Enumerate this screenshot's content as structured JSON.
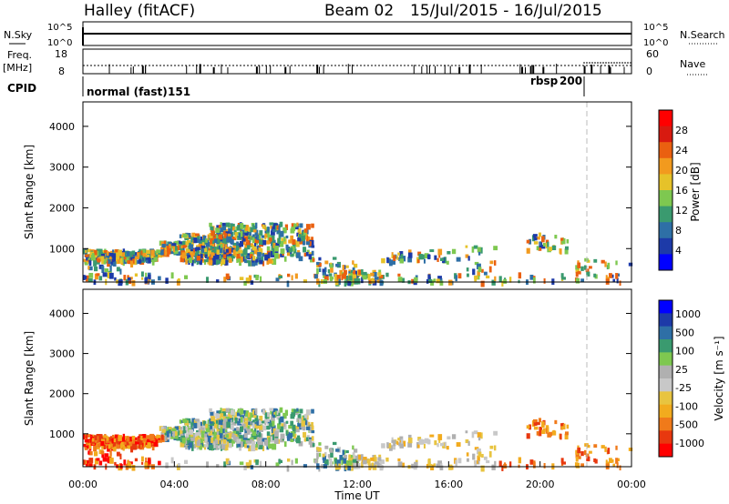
{
  "header": {
    "station": "Halley (fitACF)",
    "beam": "Beam 02",
    "date_range": "15/Jul/2015 - 16/Jul/2015"
  },
  "colors": {
    "power_scale": [
      "#0000ff",
      "#1d3aa8",
      "#2e6fa6",
      "#3a9a6f",
      "#7ec850",
      "#e6c229",
      "#f29a1e",
      "#ea6010",
      "#d81a10",
      "#ff0000"
    ],
    "velocity_scale": [
      "#ff0000",
      "#e8380f",
      "#f07a1a",
      "#f2ab1e",
      "#e8c440",
      "#c8c8c8",
      "#b0b0b0",
      "#7ec850",
      "#3a9a6f",
      "#2e6fa6",
      "#1d3aa8",
      "#0000ff"
    ]
  },
  "panels": {
    "nsky": {
      "left_label": "N.Sky",
      "right_label": "N.Search",
      "left_ticks": [
        "10^5",
        "10^0"
      ],
      "right_ticks": [
        "10^5",
        "10^0"
      ]
    },
    "freq": {
      "left_label_1": "Freq.",
      "left_label_2": "[MHz]",
      "right_label": "Nave",
      "left_ticks": [
        "18",
        "8"
      ],
      "right_ticks": [
        "60",
        "0"
      ]
    },
    "cpid": {
      "label": "CPID",
      "modes": [
        {
          "name": "normal (fast)",
          "id": "151"
        },
        {
          "name": "rbsp",
          "id": "200"
        }
      ]
    }
  },
  "chart_data": [
    {
      "type": "heatmap",
      "name": "Power",
      "ylabel": "Slant Range [km]",
      "yticks": [
        "4000",
        "3000",
        "2000",
        "1000"
      ],
      "ylim": [
        180,
        4600
      ],
      "xlim_hours": [
        0,
        24
      ],
      "colorbar_label": "Power [dB]",
      "colorbar_ticks": [
        "28",
        "24",
        "20",
        "16",
        "12",
        "8",
        "4"
      ],
      "colorbar_range": [
        0,
        32
      ]
    },
    {
      "type": "heatmap",
      "name": "Velocity",
      "ylabel": "Slant Range [km]",
      "yticks": [
        "4000",
        "3000",
        "2000",
        "1000"
      ],
      "ylim": [
        180,
        4600
      ],
      "xlim_hours": [
        0,
        24
      ],
      "xlabel": "Time UT",
      "xticks": [
        "00:00",
        "04:00",
        "08:00",
        "12:00",
        "16:00",
        "20:00",
        "00:00"
      ],
      "colorbar_label": "Velocity [m s⁻¹]",
      "colorbar_ticks": [
        "1000",
        "500",
        "100",
        "25",
        "-25",
        "-100",
        "-500",
        "-1000"
      ]
    }
  ]
}
